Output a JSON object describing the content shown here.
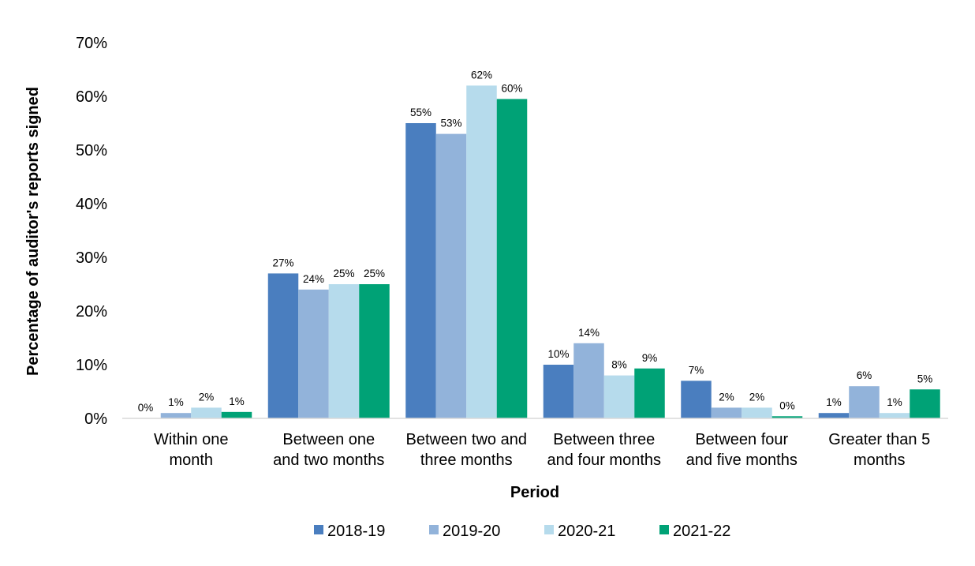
{
  "chart_data": {
    "type": "bar",
    "title": "",
    "xlabel": "Period",
    "ylabel": "Percentage of auditor's reports signed",
    "ylim": [
      0,
      70
    ],
    "yticks": [
      0,
      10,
      20,
      30,
      40,
      50,
      60,
      70
    ],
    "ytick_labels": [
      "0%",
      "10%",
      "20%",
      "30%",
      "40%",
      "50%",
      "60%",
      "70%"
    ],
    "grid": false,
    "legend_position": "bottom",
    "categories": [
      [
        "Within one",
        "month"
      ],
      [
        "Between one",
        "and two months"
      ],
      [
        "Between two and",
        "three months"
      ],
      [
        "Between three",
        "and four months"
      ],
      [
        "Between four",
        "and five months"
      ],
      [
        "Greater than 5",
        "months"
      ]
    ],
    "series": [
      {
        "name": "2018-19",
        "color": "#4a7ebf",
        "values": [
          0,
          27,
          55,
          10,
          7,
          1
        ],
        "labels": [
          "0%",
          "27%",
          "55%",
          "10%",
          "7%",
          "1%"
        ]
      },
      {
        "name": "2019-20",
        "color": "#92b3da",
        "values": [
          1,
          24,
          53,
          14,
          2,
          6
        ],
        "labels": [
          "1%",
          "24%",
          "53%",
          "14%",
          "2%",
          "6%"
        ]
      },
      {
        "name": "2020-21",
        "color": "#b6dbec",
        "values": [
          2,
          25,
          62,
          8,
          2,
          1
        ],
        "labels": [
          "2%",
          "25%",
          "62%",
          "8%",
          "2%",
          "1%"
        ]
      },
      {
        "name": "2021-22",
        "color": "#00a276",
        "values": [
          1.2,
          25,
          59.5,
          9.3,
          0.4,
          5.4
        ],
        "labels": [
          "1%",
          "25%",
          "60%",
          "9%",
          "0%",
          "5%"
        ]
      }
    ]
  }
}
